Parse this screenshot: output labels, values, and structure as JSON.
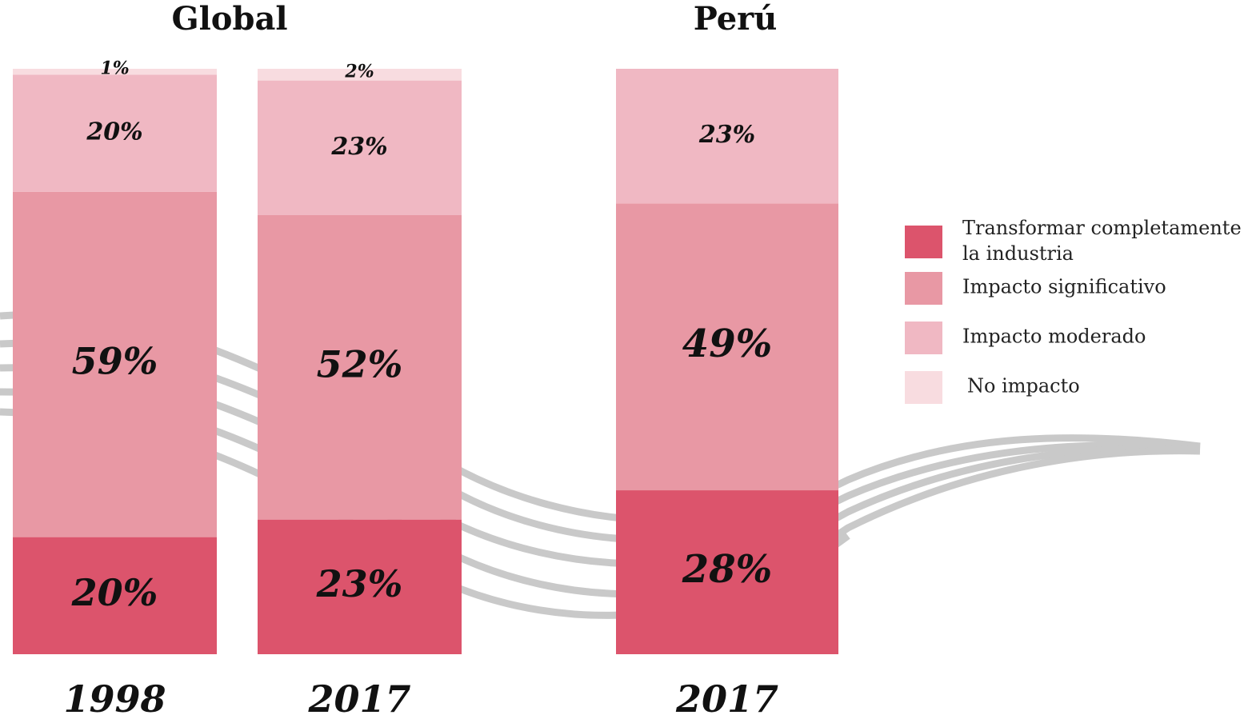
{
  "chart_data": {
    "type": "bar",
    "stacked": true,
    "ylim": [
      0,
      100
    ],
    "legend": "right",
    "groups": [
      {
        "title": "Global",
        "categories": [
          "1998",
          "2017"
        ]
      },
      {
        "title": "Perú",
        "categories": [
          "2017"
        ]
      }
    ],
    "series": [
      {
        "name": "Transformar completamente la industria",
        "color": "#dc546c",
        "values": [
          20,
          23,
          28
        ],
        "value_labels": [
          "20%",
          "23%",
          "28%"
        ]
      },
      {
        "name": "Impacto significativo",
        "color": "#e898a4",
        "values": [
          59,
          52,
          49
        ],
        "value_labels": [
          "59%",
          "52%",
          "49%"
        ]
      },
      {
        "name": "Impacto moderado",
        "color": "#f0b8c3",
        "values": [
          20,
          23,
          23
        ],
        "value_labels": [
          "20%",
          "23%",
          "23%"
        ]
      },
      {
        "name": "No impacto",
        "color": "#f8dce0",
        "values": [
          1,
          2,
          null
        ],
        "value_labels": [
          "1%",
          "2%",
          null
        ]
      }
    ]
  }
}
